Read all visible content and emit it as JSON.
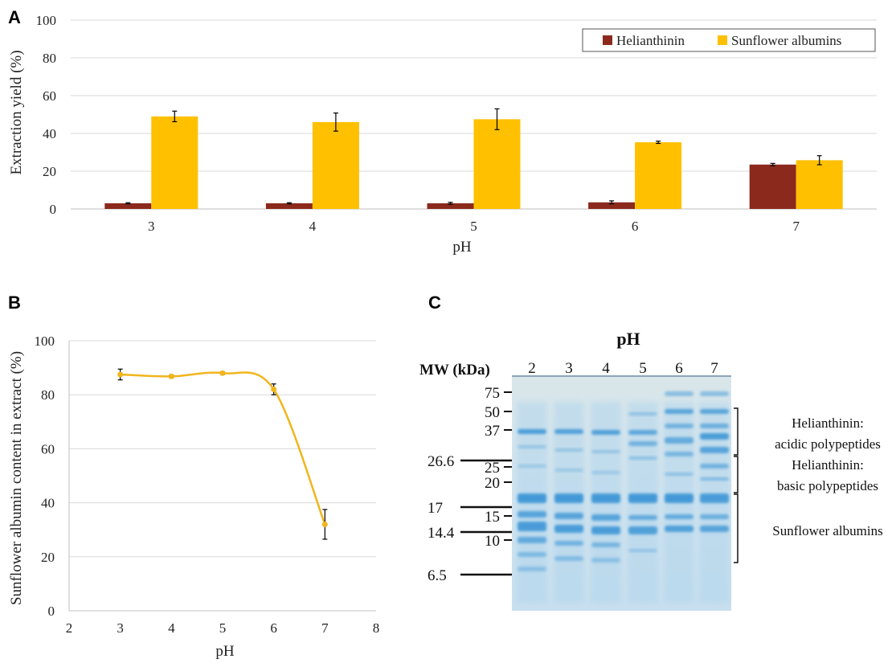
{
  "panel_labels": {
    "a": "A",
    "b": "B",
    "c": "C"
  },
  "colors": {
    "helianthinin": "#8b2a1c",
    "albumins": "#ffc000",
    "line": "#f2b51c",
    "grid": "#d9d9d9",
    "axis": "#bfbfbf"
  },
  "chart_data": [
    {
      "type": "bar",
      "categories": [
        "3",
        "4",
        "5",
        "6",
        "7"
      ],
      "series": [
        {
          "name": "Helianthinin",
          "values": [
            3,
            3,
            3,
            3.5,
            23.5
          ],
          "errors": [
            0.3,
            0.3,
            0.5,
            0.8,
            0.6
          ]
        },
        {
          "name": "Sunflower albumins",
          "values": [
            49,
            46,
            47.5,
            35.3,
            25.8
          ],
          "errors": [
            2.8,
            4.8,
            5.5,
            0.6,
            2.4
          ]
        }
      ],
      "xlabel": "pH",
      "ylabel": "Extraction yield (%)",
      "ylim": [
        0,
        100
      ],
      "yticks": [
        "0",
        "20",
        "40",
        "60",
        "80",
        "100"
      ],
      "grid": true,
      "legend_position": "top-right"
    },
    {
      "type": "line",
      "x": [
        3,
        4,
        5,
        6,
        7
      ],
      "values": [
        87.5,
        86.8,
        88,
        82,
        32
      ],
      "errors": [
        2,
        0.5,
        0.5,
        2,
        5.5
      ],
      "xlabel": "pH",
      "ylabel": "Sunflower albumin content in extract (%)",
      "xlim": [
        2,
        8
      ],
      "ylim": [
        0,
        100
      ],
      "xticks": [
        "2",
        "3",
        "4",
        "5",
        "6",
        "7",
        "8"
      ],
      "yticks": [
        "0",
        "20",
        "40",
        "60",
        "80",
        "100"
      ],
      "grid": true,
      "smooth": true
    }
  ],
  "gel": {
    "title": "pH",
    "mw_label": "MW (kDa)",
    "lanes": [
      "2",
      "3",
      "4",
      "5",
      "6",
      "7"
    ],
    "ladder_right": [
      "75",
      "50",
      "37",
      "25",
      "20",
      "15",
      "10"
    ],
    "ladder_left": [
      "26.6",
      "17",
      "14.4",
      "6.5"
    ],
    "annotations": [
      "Helianthinin:",
      "acidic polypeptides",
      "Helianthinin:",
      "basic polypeptides",
      "Sunflower albumins"
    ]
  }
}
